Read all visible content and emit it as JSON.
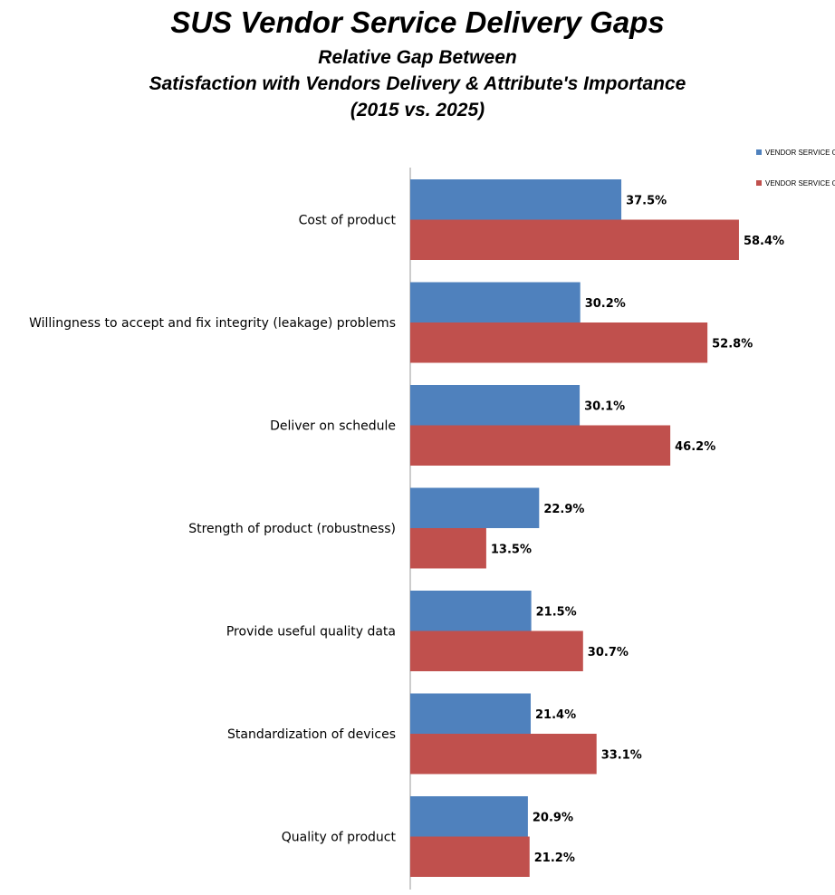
{
  "chart_data": {
    "type": "bar",
    "orientation": "horizontal",
    "title": "SUS Vendor Service Delivery Gaps",
    "subtitle": [
      "Relative Gap Between",
      "Satisfaction with Vendors Delivery & Attribute's Importance",
      "(2015 vs. 2025)"
    ],
    "categories": [
      "Cost of product",
      "Willingness to accept and fix integrity (leakage) problems",
      "Deliver on schedule",
      "Strength of product (robustness)",
      "Provide useful quality data",
      "Standardization of devices",
      "Quality of product"
    ],
    "series": [
      {
        "name": "VENDOR SERVICE G",
        "color": "#4F81BD",
        "values": [
          37.5,
          30.2,
          30.1,
          22.9,
          21.5,
          21.4,
          20.9
        ]
      },
      {
        "name": "VENDOR SERVICE G",
        "color": "#C0504D",
        "values": [
          58.4,
          52.8,
          46.2,
          13.5,
          30.7,
          33.1,
          21.2
        ]
      }
    ],
    "value_format": "percent-1dp",
    "legend": "top-right",
    "grid": false
  }
}
